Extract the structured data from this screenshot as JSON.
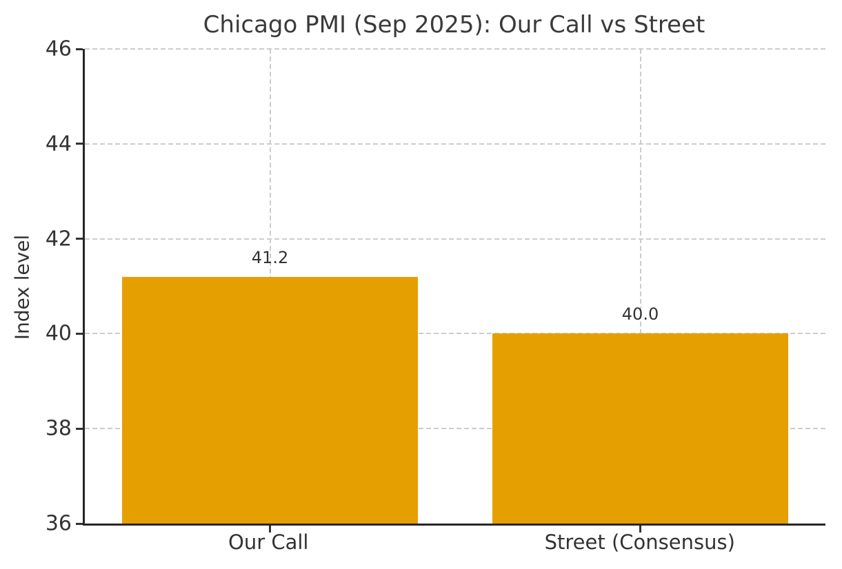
{
  "chart_data": {
    "type": "bar",
    "title": "Chicago PMI (Sep 2025): Our Call vs Street",
    "categories": [
      "Our Call",
      "Street (Consensus)"
    ],
    "values": [
      41.2,
      40.0
    ],
    "value_labels": [
      "41.2",
      "40.0"
    ],
    "xlabel": "",
    "ylabel": "Index level",
    "ylim": [
      36,
      46
    ],
    "yticks": [
      36,
      38,
      40,
      42,
      44,
      46
    ],
    "bar_width_fraction": 0.4,
    "grid": "dashed horizontal gridlines at y ticks and dashed vertical gridlines at bar centers",
    "legend_position": "none",
    "colors": {
      "bar": "#E69F00",
      "title_text": "#3a3a3a",
      "tick_text": "#333333",
      "spine": "#262626",
      "grid": "#cccccc",
      "background": "#ffffff"
    }
  }
}
